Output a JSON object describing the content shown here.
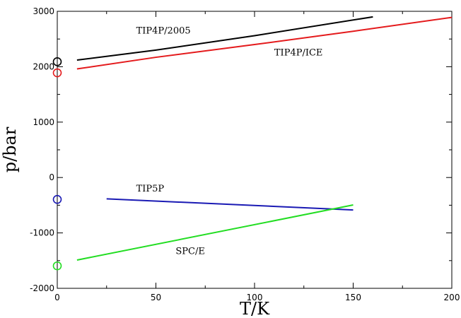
{
  "chart_data": {
    "type": "line",
    "title": "",
    "xlabel": "T/K",
    "ylabel": "p/bar",
    "xlim": [
      0,
      200
    ],
    "ylim": [
      -2000,
      3000
    ],
    "x_ticks": [
      0,
      50,
      100,
      150,
      200
    ],
    "y_ticks": [
      -2000,
      -1000,
      0,
      1000,
      2000,
      3000
    ],
    "x_tick_labels": [
      "0",
      "50",
      "100",
      "150",
      "200"
    ],
    "y_tick_labels": [
      "-2000",
      "-1000",
      "0",
      "1000",
      "2000",
      "3000"
    ],
    "grid": false,
    "legend": "none",
    "series": [
      {
        "name": "TIP4P/2005",
        "color": "#000000",
        "x": [
          10,
          50,
          100,
          160
        ],
        "y": [
          2120,
          2300,
          2560,
          2900
        ],
        "marker": {
          "x": 0,
          "y": 2090
        },
        "label_pos": {
          "x": 40,
          "y": 2600
        }
      },
      {
        "name": "TIP4P/ICE",
        "color": "#e41a1c",
        "x": [
          10,
          50,
          100,
          150,
          200
        ],
        "y": [
          1960,
          2170,
          2400,
          2640,
          2890
        ],
        "marker": {
          "x": 0,
          "y": 1890
        },
        "label_pos": {
          "x": 110,
          "y": 2200
        }
      },
      {
        "name": "TIP5P",
        "color": "#1a1ab4",
        "x": [
          25,
          150
        ],
        "y": [
          -385,
          -585
        ],
        "marker": {
          "x": 0,
          "y": -395
        },
        "label_pos": {
          "x": 40,
          "y": -250
        }
      },
      {
        "name": "SPC/E",
        "color": "#22dd22",
        "x": [
          10,
          150
        ],
        "y": [
          -1490,
          -495
        ],
        "marker": {
          "x": 0,
          "y": -1595
        },
        "label_pos": {
          "x": 60,
          "y": -1380
        }
      }
    ]
  }
}
